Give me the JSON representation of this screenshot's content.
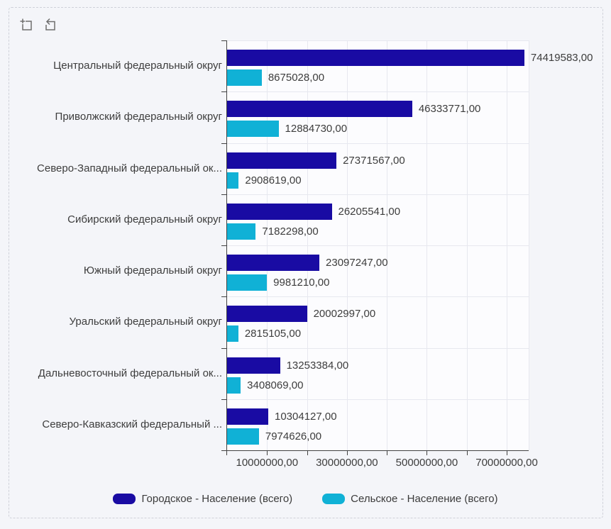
{
  "colors": {
    "page_background": "#f4f5f9",
    "plot_background": "#fcfcfe",
    "gridline": "#e7e8ef",
    "axis_line": "#424242",
    "label_text": "#3d3d3d",
    "toolbar_icon": "#6e6e6e",
    "frame_border": "#cfd1d9"
  },
  "toolbar": {
    "buttons": [
      {
        "name": "zoom-selection",
        "icon": "crop-plus-icon"
      },
      {
        "name": "undo-zoom",
        "icon": "box-undo-arrow-icon"
      }
    ]
  },
  "chart_data": {
    "type": "bar",
    "orientation": "horizontal",
    "title": "",
    "grid": true,
    "legend_position": "bottom",
    "categories": [
      "Центральный федеральный округ",
      "Приволжский федеральный округ",
      "Северо-Западный федеральный ок...",
      "Сибирский федеральный округ",
      "Южный федеральный округ",
      "Уральский федеральный округ",
      "Дальневосточный федеральный ок...",
      "Северо-Кавказский федеральный ..."
    ],
    "series": [
      {
        "name": "Городское - Население (всего)",
        "color": "#190ba3",
        "values": [
          74419583,
          46333771,
          27371567,
          26205541,
          23097247,
          20002997,
          13253384,
          10304127
        ],
        "labels": [
          "74419583,00",
          "46333771,00",
          "27371567,00",
          "26205541,00",
          "23097247,00",
          "20002997,00",
          "13253384,00",
          "10304127,00"
        ]
      },
      {
        "name": "Сельское - Население (всего)",
        "color": "#10b1d6",
        "values": [
          8675028,
          12884730,
          2908619,
          7182298,
          9981210,
          2815105,
          3408069,
          7974626
        ],
        "labels": [
          "8675028,00",
          "12884730,00",
          "2908619,00",
          "7182298,00",
          "9981210,00",
          "2815105,00",
          "3408069,00",
          "7974626,00"
        ]
      }
    ],
    "x_axis": {
      "min": 0,
      "max": 75500000,
      "tick_interval": 10000000,
      "labeled_ticks": [
        {
          "value": 10000000,
          "label": "10000000,00"
        },
        {
          "value": 30000000,
          "label": "30000000,00"
        },
        {
          "value": 50000000,
          "label": "50000000,00"
        },
        {
          "value": 70000000,
          "label": "70000000,00"
        }
      ]
    }
  }
}
